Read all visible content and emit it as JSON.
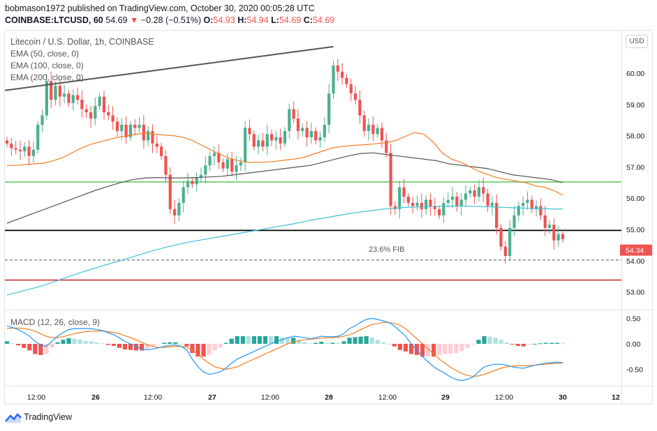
{
  "header": {
    "line1": "bobmason1972 published on TradingView.com, October 30, 2020 00:05:28 UTC",
    "symbol": "COINBASE:LTCUSD, 60",
    "last": "54.69",
    "arrow": "▼",
    "change": "−0.28 (−0.51%)",
    "o_label": "O:",
    "o_value": "54.93",
    "h_label": "H:",
    "h_value": "54.94",
    "l_label": "L:",
    "l_value": "54.69",
    "c_label": "C:",
    "c_value": "54.69"
  },
  "legend": {
    "title": "Litecoin / U.S. Dollar, 1h, COINBASE",
    "ema50": "EMA (50, close, 0)",
    "ema100": "EMA (100, close, 0)",
    "ema200": "EMA (200, close, 0)",
    "macd": "MACD (12, 26, close, 9)"
  },
  "currency_button": "USD",
  "price_tag": "54.34",
  "fib_label": "23.6% FIB",
  "footer": {
    "brand": "TradingView",
    "icon": "tradingview-logo-icon"
  },
  "colors": {
    "up": "#4caf8f",
    "down": "#ef5350",
    "ema50": "#f57c20",
    "ema100": "#555555",
    "ema200": "#3ec1d6",
    "support_green": "#66cc66",
    "resist_red": "#d32f2f",
    "macd_line": "#2196f3",
    "signal_line": "#f57c20",
    "hist_up_strong": "#26a69a",
    "hist_up_weak": "#b2dfdb",
    "hist_down_strong": "#ef5350",
    "hist_down_weak": "#ffcdd2"
  },
  "chart_data": {
    "type": "candlestick",
    "x_ticks": [
      "12:00",
      "26",
      "12:00",
      "27",
      "12:00",
      "28",
      "12:00",
      "29",
      "12:00",
      "30",
      "12"
    ],
    "y_ticks": [
      "60.00",
      "59.00",
      "58.00",
      "57.00",
      "56.00",
      "55.00",
      "54.00",
      "53.00"
    ],
    "macd_ticks": [
      "0.50",
      "0.00",
      "-0.50"
    ],
    "ylim": [
      52.75,
      61.2
    ],
    "macd_ylim": [
      -0.78,
      0.58
    ],
    "closes": [
      57.75,
      57.6,
      57.55,
      57.5,
      57.65,
      57.35,
      57.55,
      58.35,
      58.65,
      59.75,
      59.15,
      59.6,
      59.25,
      59.35,
      59.05,
      59.3,
      59.15,
      58.85,
      58.75,
      58.55,
      58.95,
      59.25,
      58.75,
      58.65,
      58.45,
      58.15,
      58.35,
      57.95,
      58.35,
      58.25,
      58.35,
      57.85,
      58.15,
      57.75,
      57.65,
      57.35,
      56.75,
      55.65,
      55.45,
      55.85,
      56.35,
      56.55,
      56.45,
      56.65,
      56.75,
      57.05,
      57.35,
      57.45,
      57.15,
      56.95,
      57.25,
      56.85,
      57.05,
      57.15,
      58.25,
      58.05,
      57.65,
      57.85,
      57.65,
      58.05,
      57.85,
      57.95,
      57.75,
      58.15,
      58.85,
      58.55,
      58.15,
      58.25,
      57.95,
      58.15,
      57.85,
      57.95,
      58.35,
      59.35,
      60.25,
      60.05,
      59.85,
      59.65,
      59.35,
      59.15,
      58.65,
      58.15,
      58.35,
      58.05,
      58.25,
      57.85,
      57.45,
      55.75,
      55.65,
      56.35,
      56.05,
      55.85,
      55.75,
      55.85,
      55.65,
      55.95,
      55.75,
      55.65,
      55.45,
      55.85,
      55.95,
      56.05,
      55.75,
      55.95,
      56.15,
      56.25,
      56.05,
      56.35,
      56.15,
      55.75,
      55.85,
      55.05,
      54.45,
      54.15,
      55.05,
      55.45,
      55.75,
      55.85,
      55.95,
      55.65,
      55.75,
      55.45,
      55.05,
      55.15,
      54.65,
      54.85,
      54.69
    ],
    "ema50": [
      57.05,
      57.05,
      57.08,
      57.1,
      57.12,
      57.2,
      57.3,
      57.45,
      57.6,
      57.72,
      57.8,
      57.88,
      57.95,
      58.0,
      58.05,
      58.08,
      58.05,
      58.02,
      58.0,
      57.95,
      57.85,
      57.7,
      57.55,
      57.4,
      57.28,
      57.2,
      57.15,
      57.15,
      57.16,
      57.18,
      57.22,
      57.25,
      57.3,
      57.4,
      57.5,
      57.6,
      57.65,
      57.68,
      57.7,
      57.72,
      57.75,
      57.78,
      57.85,
      57.98,
      58.1,
      58.05,
      57.8,
      57.45,
      57.25,
      57.15,
      57.0,
      56.85,
      56.75,
      56.65,
      56.6,
      56.55,
      56.5,
      56.4,
      56.35,
      56.25,
      56.1
    ],
    "ema100": [
      55.2,
      55.35,
      55.5,
      55.65,
      55.8,
      55.95,
      56.1,
      56.25,
      56.38,
      56.5,
      56.6,
      56.65,
      56.66,
      56.65,
      56.65,
      56.66,
      56.68,
      56.7,
      56.75,
      56.8,
      56.85,
      56.9,
      56.95,
      57.0,
      57.05,
      57.15,
      57.25,
      57.35,
      57.43,
      57.45,
      57.4,
      57.35,
      57.3,
      57.25,
      57.2,
      57.1,
      57.05,
      57.0,
      56.95,
      56.85,
      56.75,
      56.7,
      56.65,
      56.6,
      56.5
    ],
    "ema200": [
      52.9,
      53.05,
      53.2,
      53.4,
      53.6,
      53.78,
      53.95,
      54.12,
      54.3,
      54.45,
      54.58,
      54.68,
      54.78,
      54.88,
      54.98,
      55.08,
      55.18,
      55.3,
      55.4,
      55.5,
      55.58,
      55.65,
      55.7,
      55.72,
      55.74,
      55.75,
      55.74,
      55.72,
      55.7,
      55.68,
      55.66,
      55.65
    ],
    "levels": [
      {
        "name": "support",
        "value": 56.52,
        "color": "#66cc66"
      },
      {
        "name": "close-line",
        "value": 54.97,
        "color": "#000000"
      },
      {
        "name": "23.6% FIB",
        "value": 54.02,
        "color": "#555555",
        "dashed": true
      },
      {
        "name": "resistance",
        "value": 53.38,
        "color": "#d32f2f"
      }
    ],
    "trendline": {
      "from": {
        "index": 0,
        "price": 59.45
      },
      "to": {
        "index": 74,
        "price": 60.85
      }
    },
    "macd": [
      0.35,
      0.32,
      0.28,
      0.22,
      0.15,
      0.05,
      -0.02,
      -0.05,
      0.05,
      0.15,
      0.22,
      0.28,
      0.3,
      0.3,
      0.3,
      0.3,
      0.28,
      0.26,
      0.22,
      0.18,
      0.12,
      0.05,
      0.0,
      -0.05,
      -0.1,
      -0.12,
      -0.1,
      -0.08,
      -0.05,
      -0.03,
      -0.02,
      -0.05,
      -0.12,
      -0.3,
      -0.45,
      -0.55,
      -0.6,
      -0.58,
      -0.55,
      -0.48,
      -0.38,
      -0.3,
      -0.25,
      -0.2,
      -0.15,
      -0.1,
      -0.05,
      0.0,
      0.05,
      0.08,
      0.12,
      0.15,
      0.14,
      0.12,
      0.1,
      0.12,
      0.15,
      0.14,
      0.14,
      0.15,
      0.2,
      0.3,
      0.35,
      0.42,
      0.48,
      0.5,
      0.48,
      0.45,
      0.42,
      0.35,
      0.25,
      0.15,
      0.0,
      -0.12,
      -0.25,
      -0.35,
      -0.45,
      -0.52,
      -0.58,
      -0.65,
      -0.7,
      -0.72,
      -0.7,
      -0.65,
      -0.55,
      -0.45,
      -0.42,
      -0.4,
      -0.4,
      -0.42,
      -0.45,
      -0.47,
      -0.48,
      -0.45,
      -0.42,
      -0.4,
      -0.38,
      -0.37,
      -0.36,
      -0.37
    ],
    "signal": [
      0.3,
      0.31,
      0.31,
      0.3,
      0.28,
      0.25,
      0.2,
      0.15,
      0.12,
      0.12,
      0.14,
      0.17,
      0.2,
      0.22,
      0.24,
      0.25,
      0.25,
      0.25,
      0.24,
      0.22,
      0.2,
      0.16,
      0.12,
      0.08,
      0.03,
      -0.02,
      -0.05,
      -0.07,
      -0.07,
      -0.06,
      -0.05,
      -0.05,
      -0.07,
      -0.12,
      -0.2,
      -0.3,
      -0.38,
      -0.45,
      -0.48,
      -0.5,
      -0.48,
      -0.45,
      -0.4,
      -0.35,
      -0.3,
      -0.25,
      -0.2,
      -0.15,
      -0.1,
      -0.05,
      0.0,
      0.03,
      0.06,
      0.08,
      0.09,
      0.1,
      0.11,
      0.12,
      0.12,
      0.13,
      0.15,
      0.18,
      0.22,
      0.28,
      0.33,
      0.38,
      0.4,
      0.42,
      0.42,
      0.4,
      0.37,
      0.3,
      0.2,
      0.1,
      0.0,
      -0.1,
      -0.2,
      -0.3,
      -0.38,
      -0.46,
      -0.52,
      -0.58,
      -0.62,
      -0.64,
      -0.63,
      -0.6,
      -0.56,
      -0.52,
      -0.48,
      -0.45,
      -0.44,
      -0.43,
      -0.43,
      -0.43,
      -0.42,
      -0.41,
      -0.4,
      -0.39,
      -0.38,
      -0.38
    ]
  }
}
